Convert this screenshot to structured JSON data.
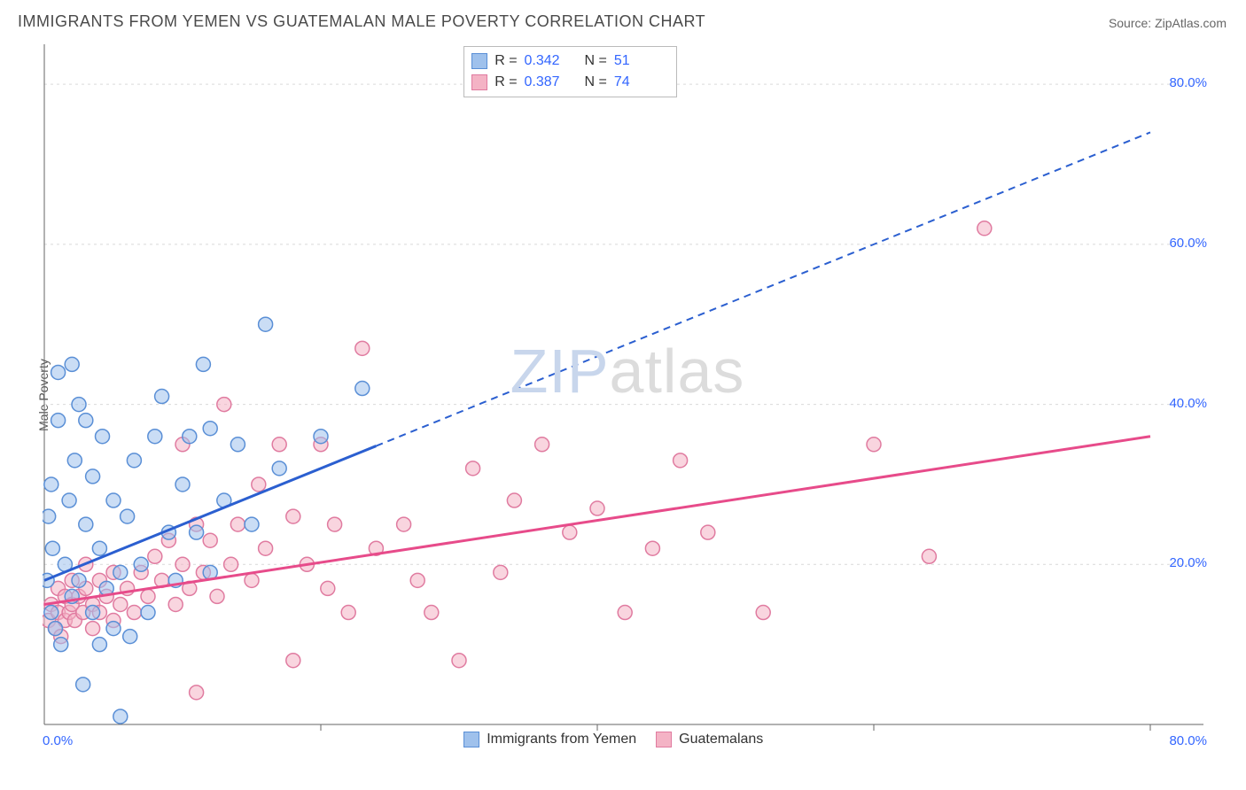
{
  "title": "IMMIGRANTS FROM YEMEN VS GUATEMALAN MALE POVERTY CORRELATION CHART",
  "source": "Source: ZipAtlas.com",
  "ylabel": "Male Poverty",
  "watermark_zip": "ZIP",
  "watermark_atlas": "atlas",
  "chart": {
    "type": "scatter",
    "xlim": [
      0,
      80
    ],
    "ylim": [
      0,
      85
    ],
    "ytick_values": [
      20,
      40,
      60,
      80
    ],
    "ytick_labels": [
      "20.0%",
      "40.0%",
      "60.0%",
      "80.0%"
    ],
    "xtick_values": [
      20,
      40,
      60,
      80
    ],
    "x_origin_label": "0.0%",
    "x_max_label": "80.0%",
    "background_color": "#ffffff",
    "grid_color": "#d9d9d9",
    "axis_color": "#666666",
    "marker_radius": 8,
    "marker_stroke_width": 1.5,
    "trend_line_width": 3,
    "trend_dash": "8,6",
    "series": [
      {
        "name": "Immigrants from Yemen",
        "fill_color": "#9fc1ec",
        "fill_opacity": 0.55,
        "stroke_color": "#5a8fd6",
        "line_color": "#2b5fd0",
        "R": "0.342",
        "N": "51",
        "trend": {
          "x1": 0,
          "y1": 18,
          "x2": 80,
          "y2": 74,
          "solid_until_x": 24
        },
        "points": [
          [
            0.2,
            18
          ],
          [
            0.3,
            26
          ],
          [
            0.5,
            14
          ],
          [
            0.5,
            30
          ],
          [
            0.6,
            22
          ],
          [
            0.8,
            12
          ],
          [
            1,
            38
          ],
          [
            1,
            44
          ],
          [
            1.2,
            10
          ],
          [
            1.5,
            20
          ],
          [
            1.8,
            28
          ],
          [
            2,
            16
          ],
          [
            2,
            45
          ],
          [
            2.2,
            33
          ],
          [
            2.5,
            18
          ],
          [
            2.5,
            40
          ],
          [
            2.8,
            5
          ],
          [
            3,
            25
          ],
          [
            3,
            38
          ],
          [
            3.5,
            14
          ],
          [
            3.5,
            31
          ],
          [
            4,
            10
          ],
          [
            4,
            22
          ],
          [
            4.2,
            36
          ],
          [
            4.5,
            17
          ],
          [
            5,
            28
          ],
          [
            5,
            12
          ],
          [
            5.5,
            1
          ],
          [
            5.5,
            19
          ],
          [
            6,
            26
          ],
          [
            6.2,
            11
          ],
          [
            6.5,
            33
          ],
          [
            7,
            20
          ],
          [
            7.5,
            14
          ],
          [
            8,
            36
          ],
          [
            8.5,
            41
          ],
          [
            9,
            24
          ],
          [
            9.5,
            18
          ],
          [
            10,
            30
          ],
          [
            10.5,
            36
          ],
          [
            11,
            24
          ],
          [
            11.5,
            45
          ],
          [
            12,
            37
          ],
          [
            12,
            19
          ],
          [
            13,
            28
          ],
          [
            14,
            35
          ],
          [
            15,
            25
          ],
          [
            16,
            50
          ],
          [
            17,
            32
          ],
          [
            20,
            36
          ],
          [
            23,
            42
          ]
        ]
      },
      {
        "name": "Guatemalans",
        "fill_color": "#f4b3c5",
        "fill_opacity": 0.55,
        "stroke_color": "#e07ba0",
        "line_color": "#e74b8a",
        "R": "0.387",
        "N": "74",
        "trend": {
          "x1": 0,
          "y1": 15,
          "x2": 80,
          "y2": 36,
          "solid_until_x": 80
        },
        "points": [
          [
            0.3,
            13
          ],
          [
            0.5,
            15
          ],
          [
            0.8,
            12
          ],
          [
            1,
            14
          ],
          [
            1,
            17
          ],
          [
            1.2,
            11
          ],
          [
            1.5,
            13
          ],
          [
            1.5,
            16
          ],
          [
            1.8,
            14
          ],
          [
            2,
            15
          ],
          [
            2,
            18
          ],
          [
            2.2,
            13
          ],
          [
            2.5,
            16
          ],
          [
            2.8,
            14
          ],
          [
            3,
            17
          ],
          [
            3,
            20
          ],
          [
            3.5,
            15
          ],
          [
            3.5,
            12
          ],
          [
            4,
            18
          ],
          [
            4,
            14
          ],
          [
            4.5,
            16
          ],
          [
            5,
            19
          ],
          [
            5,
            13
          ],
          [
            5.5,
            15
          ],
          [
            6,
            17
          ],
          [
            6.5,
            14
          ],
          [
            7,
            19
          ],
          [
            7.5,
            16
          ],
          [
            8,
            21
          ],
          [
            8.5,
            18
          ],
          [
            9,
            23
          ],
          [
            9.5,
            15
          ],
          [
            10,
            35
          ],
          [
            10,
            20
          ],
          [
            10.5,
            17
          ],
          [
            11,
            25
          ],
          [
            11,
            4
          ],
          [
            11.5,
            19
          ],
          [
            12,
            23
          ],
          [
            12.5,
            16
          ],
          [
            13,
            40
          ],
          [
            13.5,
            20
          ],
          [
            14,
            25
          ],
          [
            15,
            18
          ],
          [
            15.5,
            30
          ],
          [
            16,
            22
          ],
          [
            17,
            35
          ],
          [
            18,
            8
          ],
          [
            18,
            26
          ],
          [
            19,
            20
          ],
          [
            20,
            35
          ],
          [
            20.5,
            17
          ],
          [
            21,
            25
          ],
          [
            22,
            14
          ],
          [
            23,
            47
          ],
          [
            24,
            22
          ],
          [
            26,
            25
          ],
          [
            27,
            18
          ],
          [
            28,
            14
          ],
          [
            30,
            8
          ],
          [
            31,
            32
          ],
          [
            33,
            19
          ],
          [
            34,
            28
          ],
          [
            36,
            35
          ],
          [
            38,
            24
          ],
          [
            40,
            27
          ],
          [
            42,
            14
          ],
          [
            44,
            22
          ],
          [
            46,
            33
          ],
          [
            48,
            24
          ],
          [
            52,
            14
          ],
          [
            60,
            35
          ],
          [
            64,
            21
          ],
          [
            68,
            62
          ]
        ]
      }
    ],
    "legend_bottom": {
      "items": [
        {
          "label": "Immigrants from Yemen",
          "swatch_fill": "#9fc1ec",
          "swatch_stroke": "#5a8fd6"
        },
        {
          "label": "Guatemalans",
          "swatch_fill": "#f4b3c5",
          "swatch_stroke": "#e07ba0"
        }
      ]
    }
  }
}
